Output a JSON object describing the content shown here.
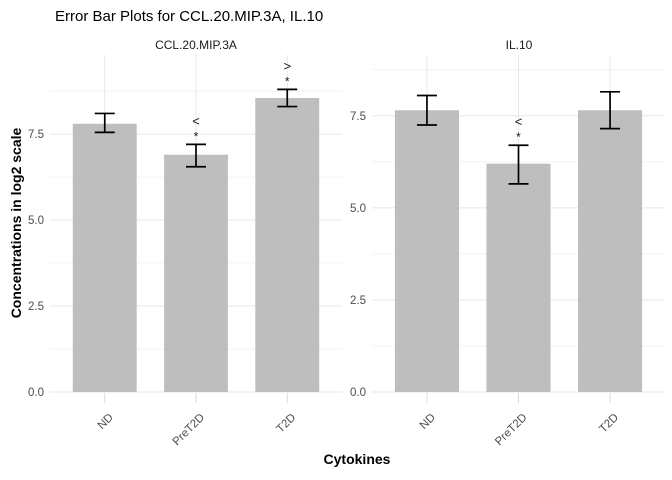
{
  "chart_data": {
    "type": "bar",
    "title": "Error Bar Plots for CCL.20.MIP.3A, IL.10",
    "xlabel": "Cytokines",
    "ylabel": "Concentrations in log2 scale",
    "categories": [
      "ND",
      "PreT2D",
      "T2D"
    ],
    "y_ticks": [
      0.0,
      2.5,
      5.0,
      7.5
    ],
    "y_tick_labels": [
      "0.0",
      "2.5",
      "5.0",
      "7.5"
    ],
    "y_minor_ticks": [
      1.25,
      3.75,
      6.25,
      8.75
    ],
    "grid": "on",
    "legend": "none",
    "bar_color": "#bebebe",
    "error_bar_color": "#000000",
    "panels": [
      {
        "label": "CCL.20.MIP.3A",
        "ylim": [
          0,
          9.8
        ],
        "series": [
          {
            "category": "ND",
            "mean": 7.8,
            "err_low": 7.55,
            "err_high": 8.1,
            "annotation": null
          },
          {
            "category": "PreT2D",
            "mean": 6.9,
            "err_low": 6.55,
            "err_high": 7.2,
            "annotation": {
              "symbol": "<",
              "star": "*"
            }
          },
          {
            "category": "T2D",
            "mean": 8.55,
            "err_low": 8.3,
            "err_high": 8.8,
            "annotation": {
              "symbol": ">",
              "star": "*"
            }
          }
        ]
      },
      {
        "label": "IL.10",
        "ylim": [
          0,
          9.15
        ],
        "series": [
          {
            "category": "ND",
            "mean": 7.65,
            "err_low": 7.25,
            "err_high": 8.05,
            "annotation": null
          },
          {
            "category": "PreT2D",
            "mean": 6.2,
            "err_low": 5.65,
            "err_high": 6.7,
            "annotation": {
              "symbol": "<",
              "star": "*"
            }
          },
          {
            "category": "T2D",
            "mean": 7.65,
            "err_low": 7.15,
            "err_high": 8.15,
            "annotation": null
          }
        ]
      }
    ]
  }
}
